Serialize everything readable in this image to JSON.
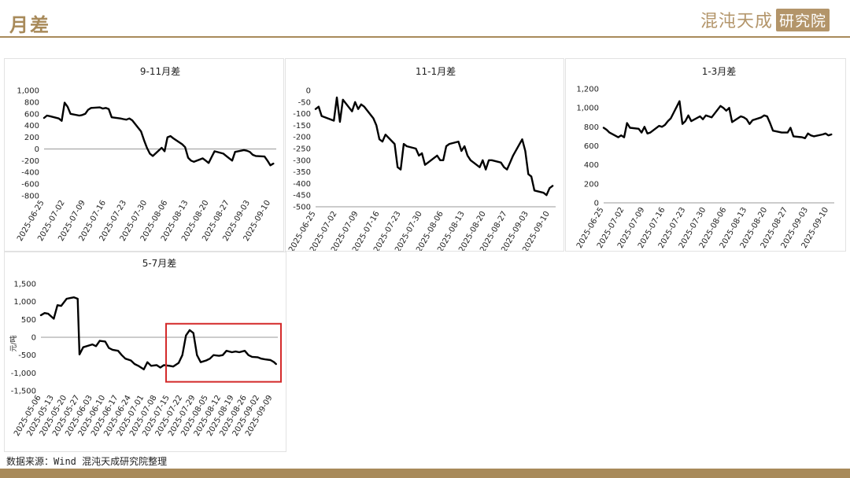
{
  "header": {
    "title": "月差"
  },
  "brand": {
    "name": "混沌天成",
    "box_label": "研究院"
  },
  "footer": {
    "source": "数据来源：Wind 混沌天成研究院整理"
  },
  "colors": {
    "accent": "#a88a5a",
    "line": "#000000",
    "highlight": "#d42a2a"
  },
  "chart_data": [
    {
      "type": "line",
      "title": "9-11月差",
      "ylim": [
        -800,
        1000
      ],
      "yticks": [
        -800,
        -600,
        -400,
        -200,
        0,
        200,
        400,
        600,
        800,
        1000
      ],
      "ytick_labels": [
        "-800",
        "-600",
        "-400",
        "-200",
        "0",
        "200",
        "400",
        "600",
        "800",
        "1,000"
      ],
      "x_start": "2025-06-25",
      "x_end": "2025-09-12",
      "x_tick_labels": [
        "2025-06-25",
        "2025-07-02",
        "2025-07-09",
        "2025-07-16",
        "2025-07-23",
        "2025-07-30",
        "2025-08-06",
        "2025-08-13",
        "2025-08-20",
        "2025-08-27",
        "2025-09-03",
        "2025-09-10"
      ],
      "series": [
        {
          "x": [
            "2025-06-25",
            "2025-06-26",
            "2025-06-27",
            "2025-06-30",
            "2025-07-01",
            "2025-07-02",
            "2025-07-03",
            "2025-07-04",
            "2025-07-07",
            "2025-07-08",
            "2025-07-09",
            "2025-07-10",
            "2025-07-11",
            "2025-07-14",
            "2025-07-15",
            "2025-07-16",
            "2025-07-17",
            "2025-07-18",
            "2025-07-21",
            "2025-07-22",
            "2025-07-23",
            "2025-07-24",
            "2025-07-25",
            "2025-07-28",
            "2025-07-29",
            "2025-07-30",
            "2025-07-31",
            "2025-08-01",
            "2025-08-04",
            "2025-08-05",
            "2025-08-06",
            "2025-08-07",
            "2025-08-08",
            "2025-08-11",
            "2025-08-12",
            "2025-08-13",
            "2025-08-14",
            "2025-08-15",
            "2025-08-18",
            "2025-08-19",
            "2025-08-20",
            "2025-08-21",
            "2025-08-22",
            "2025-08-25",
            "2025-08-26",
            "2025-08-27",
            "2025-08-28",
            "2025-08-29",
            "2025-09-01",
            "2025-09-02",
            "2025-09-03",
            "2025-09-04",
            "2025-09-05",
            "2025-09-08",
            "2025-09-09",
            "2025-09-10",
            "2025-09-11"
          ],
          "values": [
            530,
            570,
            560,
            520,
            480,
            790,
            720,
            600,
            570,
            580,
            600,
            670,
            700,
            710,
            690,
            700,
            680,
            540,
            520,
            510,
            500,
            520,
            490,
            300,
            150,
            20,
            -80,
            -120,
            20,
            -40,
            200,
            220,
            180,
            80,
            30,
            -150,
            -200,
            -220,
            -160,
            -200,
            -240,
            -140,
            -40,
            -80,
            -120,
            -160,
            -200,
            -50,
            -20,
            -30,
            -50,
            -100,
            -120,
            -130,
            -200,
            -280,
            -250
          ]
        }
      ]
    },
    {
      "type": "line",
      "title": "11-1月差",
      "ylim": [
        -500,
        0
      ],
      "yticks": [
        -500,
        -450,
        -400,
        -350,
        -300,
        -250,
        -200,
        -150,
        -100,
        -50,
        0
      ],
      "ytick_labels": [
        "-500",
        "-450",
        "-400",
        "-350",
        "-300",
        "-250",
        "-200",
        "-150",
        "-100",
        "-50",
        "0"
      ],
      "x_start": "2025-06-25",
      "x_end": "2025-09-12",
      "x_tick_labels": [
        "2025-06-25",
        "2025-07-02",
        "2025-07-09",
        "2025-07-16",
        "2025-07-23",
        "2025-07-30",
        "2025-08-06",
        "2025-08-13",
        "2025-08-20",
        "2025-08-27",
        "2025-09-03",
        "2025-09-10"
      ],
      "series": [
        {
          "x": [
            "2025-06-25",
            "2025-06-26",
            "2025-06-27",
            "2025-06-30",
            "2025-07-01",
            "2025-07-02",
            "2025-07-03",
            "2025-07-04",
            "2025-07-07",
            "2025-07-08",
            "2025-07-09",
            "2025-07-10",
            "2025-07-11",
            "2025-07-14",
            "2025-07-15",
            "2025-07-16",
            "2025-07-17",
            "2025-07-18",
            "2025-07-21",
            "2025-07-22",
            "2025-07-23",
            "2025-07-24",
            "2025-07-25",
            "2025-07-28",
            "2025-07-29",
            "2025-07-30",
            "2025-07-31",
            "2025-08-01",
            "2025-08-04",
            "2025-08-05",
            "2025-08-06",
            "2025-08-07",
            "2025-08-08",
            "2025-08-11",
            "2025-08-12",
            "2025-08-13",
            "2025-08-14",
            "2025-08-15",
            "2025-08-18",
            "2025-08-19",
            "2025-08-20",
            "2025-08-21",
            "2025-08-22",
            "2025-08-25",
            "2025-08-26",
            "2025-08-27",
            "2025-08-28",
            "2025-08-29",
            "2025-09-01",
            "2025-09-02",
            "2025-09-03",
            "2025-09-04",
            "2025-09-05",
            "2025-09-08",
            "2025-09-09",
            "2025-09-10",
            "2025-09-11"
          ],
          "values": [
            -80,
            -70,
            -110,
            -125,
            -130,
            -30,
            -135,
            -40,
            -90,
            -50,
            -80,
            -60,
            -70,
            -120,
            -150,
            -210,
            -220,
            -190,
            -230,
            -330,
            -340,
            -230,
            -240,
            -250,
            -280,
            -270,
            -320,
            -310,
            -280,
            -300,
            -300,
            -240,
            -230,
            -220,
            -260,
            -240,
            -280,
            -300,
            -330,
            -300,
            -340,
            -300,
            -300,
            -310,
            -330,
            -340,
            -310,
            -280,
            -210,
            -260,
            -360,
            -370,
            -430,
            -440,
            -450,
            -420,
            -410
          ]
        }
      ]
    },
    {
      "type": "line",
      "title": "1-3月差",
      "ylim": [
        0,
        1200
      ],
      "yticks": [
        0,
        200,
        400,
        600,
        800,
        1000,
        1200
      ],
      "ytick_labels": [
        "0",
        "200",
        "400",
        "600",
        "800",
        "1,000",
        "1,200"
      ],
      "x_start": "2025-06-25",
      "x_end": "2025-09-12",
      "x_tick_labels": [
        "2025-06-25",
        "2025-07-02",
        "2025-07-09",
        "2025-07-16",
        "2025-07-23",
        "2025-07-30",
        "2025-08-06",
        "2025-08-13",
        "2025-08-20",
        "2025-08-27",
        "2025-09-03",
        "2025-09-10"
      ],
      "series": [
        {
          "x": [
            "2025-06-25",
            "2025-06-26",
            "2025-06-27",
            "2025-06-30",
            "2025-07-01",
            "2025-07-02",
            "2025-07-03",
            "2025-07-04",
            "2025-07-07",
            "2025-07-08",
            "2025-07-09",
            "2025-07-10",
            "2025-07-11",
            "2025-07-14",
            "2025-07-15",
            "2025-07-16",
            "2025-07-17",
            "2025-07-18",
            "2025-07-21",
            "2025-07-22",
            "2025-07-23",
            "2025-07-24",
            "2025-07-25",
            "2025-07-28",
            "2025-07-29",
            "2025-07-30",
            "2025-07-31",
            "2025-08-01",
            "2025-08-04",
            "2025-08-05",
            "2025-08-06",
            "2025-08-07",
            "2025-08-08",
            "2025-08-11",
            "2025-08-12",
            "2025-08-13",
            "2025-08-14",
            "2025-08-15",
            "2025-08-18",
            "2025-08-19",
            "2025-08-20",
            "2025-08-21",
            "2025-08-22",
            "2025-08-25",
            "2025-08-26",
            "2025-08-27",
            "2025-08-28",
            "2025-08-29",
            "2025-09-01",
            "2025-09-02",
            "2025-09-03",
            "2025-09-04",
            "2025-09-05",
            "2025-09-08",
            "2025-09-09",
            "2025-09-10",
            "2025-09-11"
          ],
          "values": [
            790,
            770,
            740,
            690,
            710,
            690,
            840,
            790,
            780,
            740,
            800,
            730,
            740,
            810,
            800,
            820,
            860,
            890,
            1070,
            830,
            860,
            920,
            860,
            910,
            880,
            920,
            910,
            900,
            1020,
            1000,
            970,
            1000,
            850,
            910,
            900,
            880,
            830,
            870,
            900,
            920,
            910,
            840,
            760,
            740,
            740,
            740,
            790,
            700,
            690,
            680,
            730,
            710,
            700,
            720,
            730,
            710,
            720
          ]
        }
      ]
    },
    {
      "type": "line",
      "title": "5-7月差",
      "ylabel": "元/吨",
      "ylim": [
        -1500,
        1500
      ],
      "yticks": [
        -1500,
        -1000,
        -500,
        0,
        500,
        1000,
        1500
      ],
      "ytick_labels": [
        "-1,500",
        "-1,000",
        "-500",
        "0",
        "500",
        "1,000",
        "1,500"
      ],
      "x_start": "2025-05-06",
      "x_end": "2025-09-12",
      "x_tick_labels": [
        "2025-05-06",
        "2025-05-13",
        "2025-05-20",
        "2025-05-27",
        "2025-06-03",
        "2025-06-10",
        "2025-06-17",
        "2025-06-24",
        "2025-07-01",
        "2025-07-08",
        "2025-07-15",
        "2025-07-22",
        "2025-07-29",
        "2025-08-05",
        "2025-08-12",
        "2025-08-19",
        "2025-08-26",
        "2025-09-02",
        "2025-09-09"
      ],
      "highlight_range": {
        "x0": "2025-07-14",
        "x1": "2025-09-12",
        "y0": -1250,
        "y1": 380
      },
      "series": [
        {
          "x": [
            "2025-05-06",
            "2025-05-08",
            "2025-05-10",
            "2025-05-13",
            "2025-05-15",
            "2025-05-17",
            "2025-05-20",
            "2025-05-22",
            "2025-05-24",
            "2025-05-26",
            "2025-05-27",
            "2025-05-29",
            "2025-06-03",
            "2025-06-05",
            "2025-06-07",
            "2025-06-10",
            "2025-06-12",
            "2025-06-14",
            "2025-06-17",
            "2025-06-19",
            "2025-06-21",
            "2025-06-24",
            "2025-06-26",
            "2025-06-28",
            "2025-07-01",
            "2025-07-03",
            "2025-07-05",
            "2025-07-08",
            "2025-07-10",
            "2025-07-12",
            "2025-07-15",
            "2025-07-17",
            "2025-07-20",
            "2025-07-22",
            "2025-07-24",
            "2025-07-26",
            "2025-07-28",
            "2025-07-30",
            "2025-08-01",
            "2025-08-04",
            "2025-08-06",
            "2025-08-08",
            "2025-08-11",
            "2025-08-13",
            "2025-08-15",
            "2025-08-18",
            "2025-08-20",
            "2025-08-22",
            "2025-08-25",
            "2025-08-27",
            "2025-08-29",
            "2025-09-01",
            "2025-09-03",
            "2025-09-05",
            "2025-09-08",
            "2025-09-10",
            "2025-09-11"
          ],
          "values": [
            620,
            680,
            660,
            520,
            900,
            880,
            1080,
            1100,
            1120,
            1080,
            -480,
            -280,
            -200,
            -250,
            -100,
            -120,
            -300,
            -350,
            -380,
            -500,
            -600,
            -650,
            -750,
            -800,
            -900,
            -700,
            -800,
            -780,
            -850,
            -780,
            -800,
            -820,
            -720,
            -500,
            50,
            200,
            120,
            -500,
            -700,
            -650,
            -600,
            -500,
            -520,
            -500,
            -380,
            -420,
            -400,
            -420,
            -380,
            -500,
            -550,
            -560,
            -600,
            -620,
            -640,
            -700,
            -750
          ]
        }
      ]
    }
  ]
}
